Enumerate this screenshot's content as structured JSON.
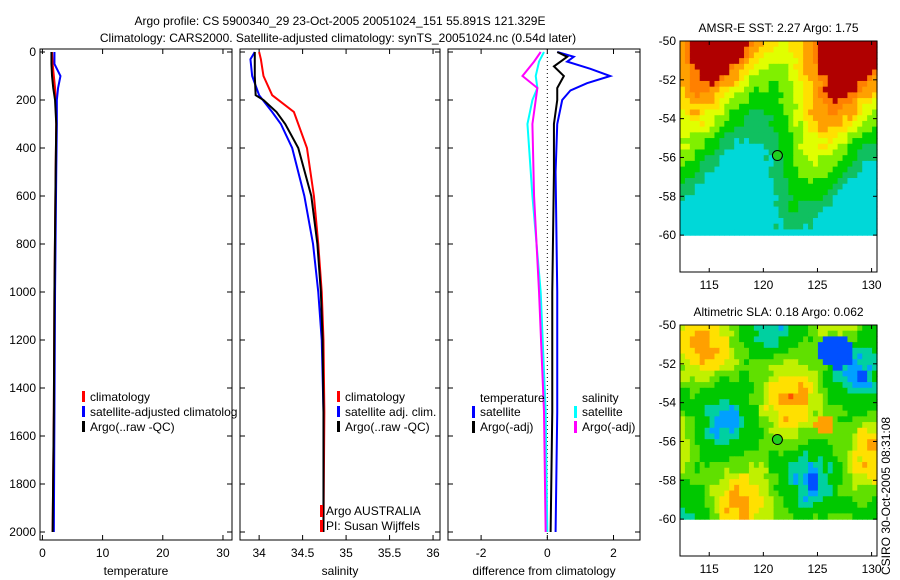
{
  "title": {
    "line1": "Argo profile: CS 5900340_29 23-Oct-2005 20051024_151 55.891S 121.329E",
    "line2": "Climatology: CARS2000. Satellite-adjusted climatology: synTS_20051024.nc (0.54d later)"
  },
  "side_label": "CSIRO 30-Oct-2005 08:31:08",
  "chart_data": [
    {
      "type": "line",
      "xlabel": "temperature",
      "xlim": [
        -0.4,
        31.5
      ],
      "ylim": [
        2050,
        0
      ],
      "xticks": [
        0,
        10,
        20,
        30
      ],
      "yticks": [
        0,
        200,
        400,
        600,
        800,
        1000,
        1200,
        1400,
        1600,
        1800,
        2000
      ],
      "legend": [
        "climatology",
        "satellite-adjusted climatolog",
        "Argo(..raw -QC)"
      ],
      "series": [
        {
          "name": "climatology",
          "color": "#ff0000",
          "depth": [
            0,
            50,
            100,
            150,
            200,
            300,
            500,
            1000,
            1500,
            2000
          ],
          "values": [
            1.6,
            1.7,
            1.9,
            2.1,
            2.2,
            2.3,
            2.2,
            2.0,
            1.9,
            1.7
          ]
        },
        {
          "name": "satellite-adjusted climatology",
          "color": "#0000ff",
          "depth": [
            0,
            50,
            80,
            100,
            150,
            200,
            300,
            500,
            1000,
            1500,
            2000
          ],
          "values": [
            2.0,
            2.0,
            2.6,
            3.0,
            2.6,
            2.4,
            2.4,
            2.3,
            2.1,
            2.0,
            1.9
          ]
        },
        {
          "name": "Argo",
          "color": "#000000",
          "depth": [
            0,
            50,
            100,
            150,
            200,
            300,
            500,
            1000,
            1500,
            2000
          ],
          "values": [
            1.5,
            1.5,
            1.6,
            1.8,
            2.1,
            2.3,
            2.2,
            2.0,
            1.9,
            1.7
          ]
        }
      ]
    },
    {
      "type": "line",
      "xlabel": "salinity",
      "xlim": [
        33.78,
        36.08
      ],
      "ylim": [
        2050,
        0
      ],
      "xticks": [
        34,
        34.5,
        35,
        35.5,
        36
      ],
      "xticklabels": [
        "34",
        "34.5",
        "35",
        "35.5",
        "36"
      ],
      "legend": [
        "climatology",
        "satellite adj. clim.",
        "Argo(..raw -QC)"
      ],
      "notes": [
        "Argo AUSTRALIA",
        "PI: Susan Wijffels"
      ],
      "series": [
        {
          "name": "climatology",
          "color": "#ff0000",
          "depth": [
            0,
            30,
            100,
            180,
            250,
            300,
            400,
            600,
            800,
            1000,
            1200,
            1500,
            2000
          ],
          "values": [
            34.0,
            34.02,
            34.05,
            34.15,
            34.4,
            34.45,
            34.55,
            34.63,
            34.68,
            34.72,
            34.74,
            34.75,
            34.74
          ]
        },
        {
          "name": "satellite adj. clim.",
          "color": "#0000ff",
          "depth": [
            0,
            30,
            100,
            180,
            250,
            300,
            400,
            600,
            800,
            1000,
            1200,
            1500,
            2000
          ],
          "values": [
            33.95,
            33.9,
            33.92,
            34.0,
            34.15,
            34.25,
            34.38,
            34.52,
            34.62,
            34.68,
            34.72,
            34.74,
            34.74
          ]
        },
        {
          "name": "Argo",
          "color": "#000000",
          "depth": [
            0,
            50,
            100,
            180,
            200,
            250,
            300,
            400,
            600,
            800,
            1000,
            1200,
            1500,
            2000
          ],
          "values": [
            33.95,
            33.95,
            33.95,
            33.96,
            34.05,
            34.2,
            34.3,
            34.45,
            34.6,
            34.67,
            34.71,
            34.73,
            34.74,
            34.74
          ]
        }
      ]
    },
    {
      "type": "line",
      "xlabel": "difference from climatology",
      "xlim": [
        -3,
        2.8
      ],
      "ylim": [
        2050,
        0
      ],
      "xticks": [
        -2,
        0,
        2
      ],
      "xticklabels": [
        "-2",
        "0",
        "2"
      ],
      "legend": {
        "temperature": [
          "satellite",
          "Argo(-adj)"
        ],
        "salinity": [
          "satellite",
          "Argo(-adj)"
        ],
        "headers": [
          "temperature",
          "salinity"
        ]
      },
      "series": [
        {
          "name": "temperature satellite",
          "color": "#0000ff",
          "depth": [
            0,
            20,
            40,
            70,
            100,
            130,
            160,
            200,
            300,
            500,
            1000,
            1500,
            2000
          ],
          "values": [
            0.3,
            0.8,
            0.6,
            1.3,
            1.9,
            1.2,
            0.7,
            0.45,
            0.3,
            0.25,
            0.3,
            0.3,
            0.25
          ]
        },
        {
          "name": "temperature Argo(-adj)",
          "color": "#000000",
          "depth": [
            0,
            20,
            60,
            100,
            150,
            200,
            300,
            500,
            1000,
            1500,
            2000
          ],
          "values": [
            0.3,
            0.6,
            0.2,
            0.5,
            0.3,
            0.3,
            0.2,
            0.2,
            0.15,
            0.15,
            0.1
          ]
        },
        {
          "name": "salinity satellite",
          "color": "#00ffff",
          "depth": [
            0,
            40,
            100,
            150,
            200,
            300,
            600,
            1000,
            1500,
            2000
          ],
          "values": [
            -0.1,
            -0.25,
            -0.35,
            -0.3,
            -0.45,
            -0.6,
            -0.45,
            -0.2,
            -0.05,
            0.0
          ]
        },
        {
          "name": "salinity Argo(-adj)",
          "color": "#ff00ff",
          "depth": [
            0,
            40,
            100,
            150,
            200,
            300,
            600,
            1000,
            1500,
            2000
          ],
          "values": [
            -0.2,
            -0.4,
            -0.75,
            -0.3,
            -0.35,
            -0.45,
            -0.4,
            -0.25,
            -0.1,
            -0.05
          ]
        }
      ]
    },
    {
      "type": "heatmap",
      "title": "AMSR-E SST: 2.27 Argo: 1.75",
      "xlim": [
        112.3,
        130.5
      ],
      "ylim": [
        -61.9,
        -50
      ],
      "xticks": [
        115,
        120,
        125,
        130
      ],
      "yticks": [
        -50,
        -52,
        -54,
        -56,
        -58,
        -60
      ],
      "point": {
        "lon": 121.3,
        "lat": -55.9
      }
    },
    {
      "type": "heatmap",
      "title": "Altimetric SLA: 0.18 Argo: 0.062",
      "xlim": [
        112.3,
        130.5
      ],
      "ylim": [
        -61.9,
        -50
      ],
      "xticks": [
        115,
        120,
        125,
        130
      ],
      "yticks": [
        -50,
        -52,
        -54,
        -56,
        -58,
        -60
      ],
      "point": {
        "lon": 121.3,
        "lat": -55.9
      }
    }
  ]
}
